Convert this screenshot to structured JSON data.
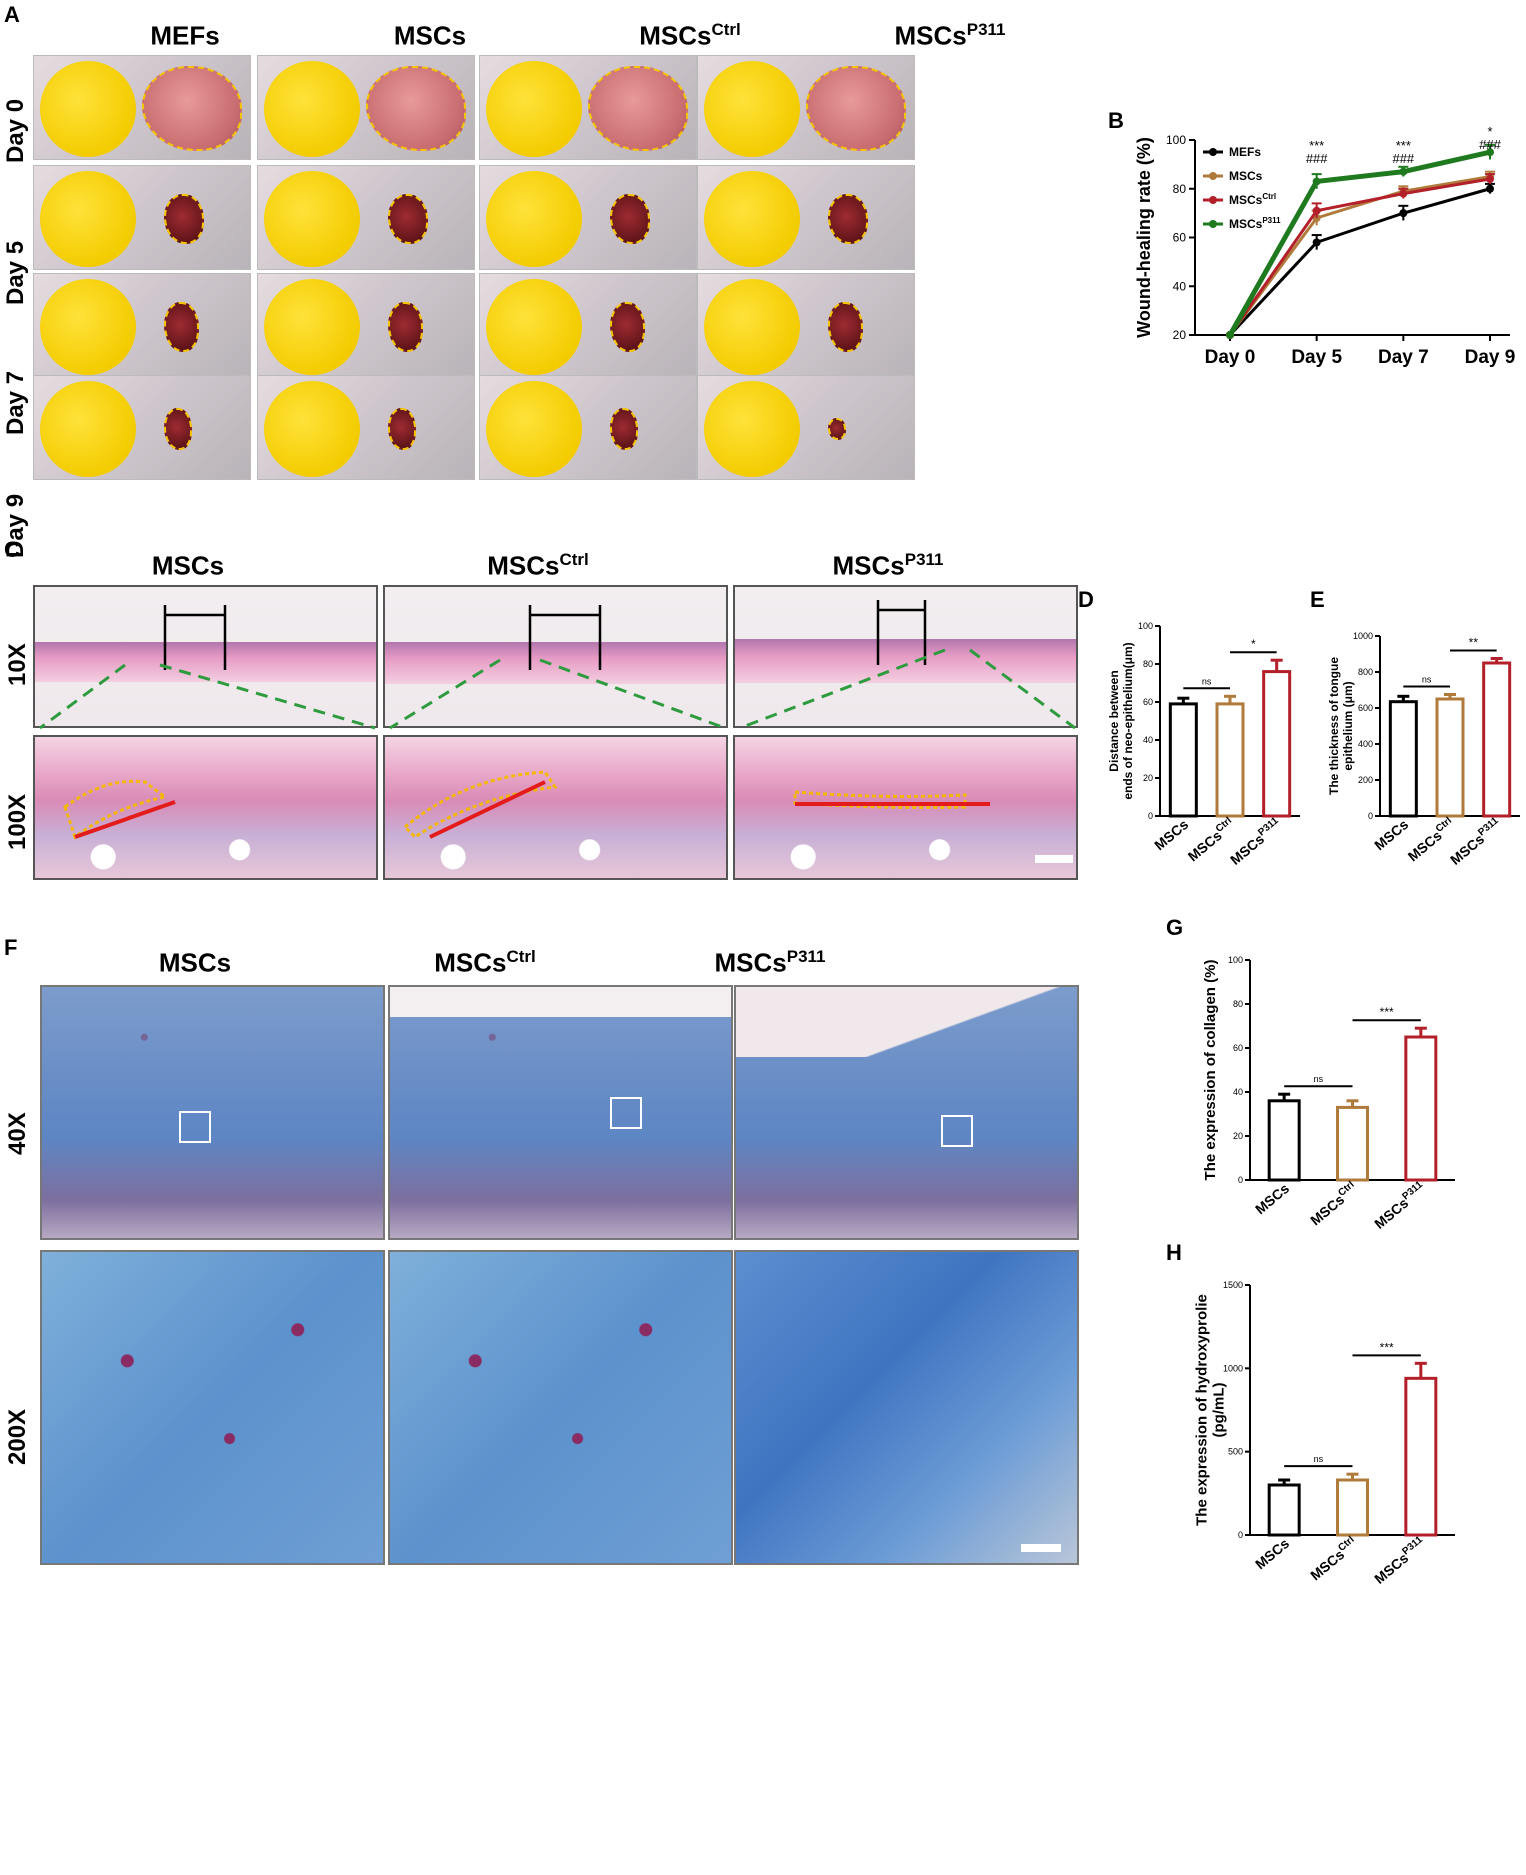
{
  "panels": {
    "A": "A",
    "B": "B",
    "C": "C",
    "D": "D",
    "E": "E",
    "F": "F",
    "G": "G",
    "H": "H"
  },
  "panelA": {
    "columns": [
      {
        "base": "MEFs",
        "sup": ""
      },
      {
        "base": "MSCs",
        "sup": ""
      },
      {
        "base": "MSCs",
        "sup": "Ctrl"
      },
      {
        "base": "MSCs",
        "sup": "P311"
      }
    ],
    "rows": [
      "Day 0",
      "Day 5",
      "Day 7",
      "Day 9"
    ]
  },
  "panelC": {
    "columns": [
      {
        "base": "MSCs",
        "sup": ""
      },
      {
        "base": "MSCs",
        "sup": "Ctrl"
      },
      {
        "base": "MSCs",
        "sup": "P311"
      }
    ],
    "rows": [
      "10X",
      "100X"
    ]
  },
  "panelF": {
    "columns": [
      {
        "base": "MSCs",
        "sup": ""
      },
      {
        "base": "MSCs",
        "sup": "Ctrl"
      },
      {
        "base": "MSCs",
        "sup": "P311"
      }
    ],
    "rows": [
      "40X",
      "200X"
    ]
  },
  "colors": {
    "black": "#000000",
    "brown": "#b07a3a",
    "red": "#b3202a",
    "green": "#1f7a1f"
  },
  "chart_data": [
    {
      "id": "B",
      "type": "line",
      "ylabel": "Wound-healing rate (%)",
      "categories": [
        "Day 0",
        "Day 5",
        "Day 7",
        "Day 9"
      ],
      "ylim": [
        20,
        100
      ],
      "yticks": [
        20,
        40,
        60,
        80,
        100
      ],
      "series": [
        {
          "name": "MEFs",
          "sup": "",
          "color": "#000000",
          "values": [
            20,
            58,
            70,
            80
          ],
          "errors": [
            0,
            3,
            3,
            2
          ]
        },
        {
          "name": "MSCs",
          "sup": "",
          "color": "#b07a3a",
          "values": [
            20,
            68,
            79,
            85
          ],
          "errors": [
            0,
            3,
            2,
            2
          ]
        },
        {
          "name": "MSCs",
          "sup": "Ctrl",
          "color": "#b3202a",
          "values": [
            20,
            71,
            78,
            84
          ],
          "errors": [
            0,
            3,
            2,
            2
          ]
        },
        {
          "name": "MSCs",
          "sup": "P311",
          "color": "#1f7a1f",
          "values": [
            20,
            83,
            87,
            95
          ],
          "errors": [
            0,
            3,
            2,
            3
          ]
        }
      ],
      "annotations": [
        {
          "category": "Day 5",
          "lines": [
            "***",
            "###"
          ]
        },
        {
          "category": "Day 7",
          "lines": [
            "***",
            "###"
          ]
        },
        {
          "category": "Day 9",
          "lines": [
            "*",
            "###"
          ]
        }
      ]
    },
    {
      "id": "D",
      "type": "bar",
      "ylabel_lines": [
        "Distance between",
        "ends of neo-epithelium(μm)"
      ],
      "categories": [
        {
          "base": "MSCs",
          "sup": ""
        },
        {
          "base": "MSCs",
          "sup": "Ctrl"
        },
        {
          "base": "MSCs",
          "sup": "P311"
        }
      ],
      "values": [
        59,
        59,
        76
      ],
      "errors": [
        3,
        4,
        6
      ],
      "ylim": [
        0,
        100
      ],
      "yticks": [
        0,
        20,
        40,
        60,
        80,
        100
      ],
      "colors": [
        "#000000",
        "#b07a3a",
        "#b3202a"
      ],
      "comparisons": [
        {
          "from": 0,
          "to": 1,
          "label": "ns"
        },
        {
          "from": 1,
          "to": 2,
          "label": "*"
        }
      ]
    },
    {
      "id": "E",
      "type": "bar",
      "ylabel_lines": [
        "The thickness of tongue",
        "epithelium (μm)"
      ],
      "categories": [
        {
          "base": "MSCs",
          "sup": ""
        },
        {
          "base": "MSCs",
          "sup": "Ctrl"
        },
        {
          "base": "MSCs",
          "sup": "P311"
        }
      ],
      "values": [
        635,
        650,
        850
      ],
      "errors": [
        30,
        25,
        25
      ],
      "ylim": [
        0,
        1000
      ],
      "yticks": [
        0,
        200,
        400,
        600,
        800,
        1000
      ],
      "colors": [
        "#000000",
        "#b07a3a",
        "#b3202a"
      ],
      "comparisons": [
        {
          "from": 0,
          "to": 1,
          "label": "ns"
        },
        {
          "from": 1,
          "to": 2,
          "label": "**"
        }
      ]
    },
    {
      "id": "G",
      "type": "bar",
      "ylabel_lines": [
        "The expression of collagen (%)"
      ],
      "categories": [
        {
          "base": "MSCs",
          "sup": ""
        },
        {
          "base": "MSCs",
          "sup": "Ctrl"
        },
        {
          "base": "MSCs",
          "sup": "P311"
        }
      ],
      "values": [
        36,
        33,
        65
      ],
      "errors": [
        3,
        3,
        4
      ],
      "ylim": [
        0,
        100
      ],
      "yticks": [
        0,
        20,
        40,
        60,
        80,
        100
      ],
      "colors": [
        "#000000",
        "#b07a3a",
        "#b3202a"
      ],
      "comparisons": [
        {
          "from": 0,
          "to": 1,
          "label": "ns"
        },
        {
          "from": 1,
          "to": 2,
          "label": "***"
        }
      ]
    },
    {
      "id": "H",
      "type": "bar",
      "ylabel_lines": [
        "The expression of hydroxyprolie",
        "(pg/mL)"
      ],
      "categories": [
        {
          "base": "MSCs",
          "sup": ""
        },
        {
          "base": "MSCs",
          "sup": "Ctrl"
        },
        {
          "base": "MSCs",
          "sup": "P311"
        }
      ],
      "values": [
        300,
        330,
        940
      ],
      "errors": [
        30,
        35,
        90
      ],
      "ylim": [
        0,
        1500
      ],
      "yticks": [
        0,
        500,
        1000,
        1500
      ],
      "colors": [
        "#000000",
        "#b07a3a",
        "#b3202a"
      ],
      "comparisons": [
        {
          "from": 0,
          "to": 1,
          "label": "ns"
        },
        {
          "from": 1,
          "to": 2,
          "label": "***"
        }
      ]
    }
  ]
}
